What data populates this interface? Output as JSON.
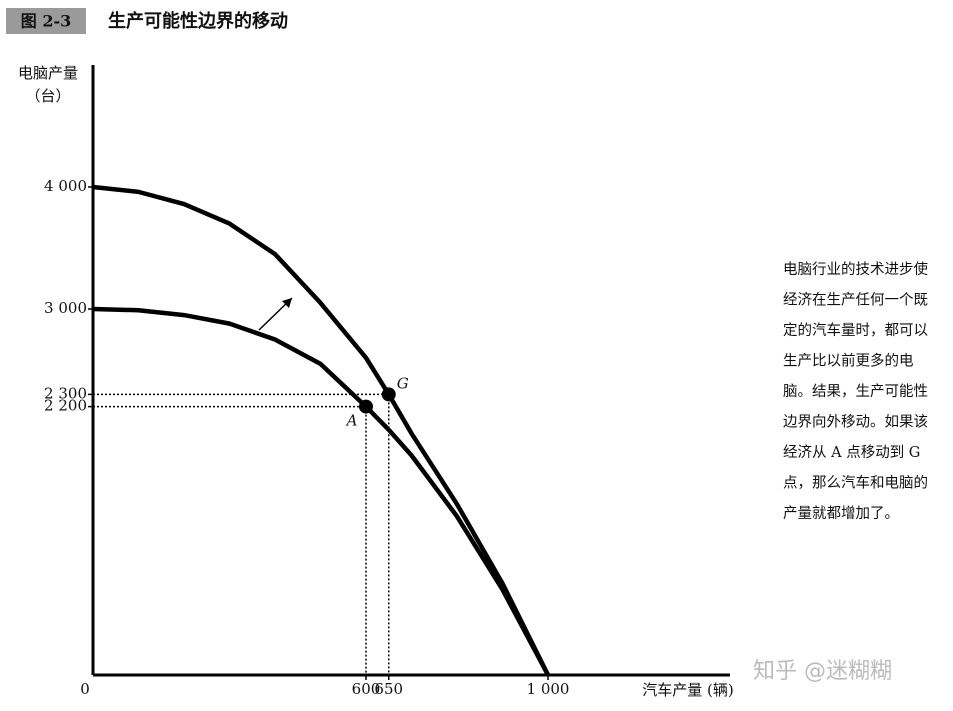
{
  "chart_data": {
    "type": "line",
    "badge": "图 2-3",
    "title": "生产可能性边界的移动",
    "ylabel": [
      "电脑产量",
      "（台）"
    ],
    "xlabel": "汽车产量 (辆)",
    "x": [
      0,
      100,
      200,
      300,
      400,
      500,
      600,
      650,
      700,
      800,
      900,
      1000
    ],
    "series": [
      {
        "color": "#000000",
        "values": [
          3000,
          2990,
          2950,
          2880,
          2750,
          2550,
          2200,
          2010,
          1800,
          1300,
          700,
          0
        ]
      },
      {
        "color": "#000000",
        "values": [
          4000,
          3960,
          3860,
          3700,
          3450,
          3050,
          2600,
          2300,
          1980,
          1400,
          750,
          0
        ]
      }
    ],
    "points": [
      {
        "name": "A",
        "x": 600,
        "y": 2200
      },
      {
        "name": "G",
        "x": 650,
        "y": 2300
      }
    ],
    "xlim": [
      0,
      1400
    ],
    "ylim": [
      0,
      5000
    ],
    "xticks": [
      0,
      600,
      650,
      {
        "value": 1000,
        "label": "1 000"
      }
    ],
    "yticks": [
      {
        "value": 4000,
        "label": "4 000"
      },
      {
        "value": 3000,
        "label": "3 000"
      },
      {
        "value": 2300,
        "label": "2 300"
      },
      {
        "value": 2200,
        "label": "2 200"
      }
    ],
    "annotation": [
      "电脑行业的技术进步使",
      "经济在生产任何一个既",
      "定的汽车量时，都可以",
      "生产比以前更多的电",
      "脑。结果，生产可能性",
      "边界向外移动。如果该",
      "经济从 A 点移动到 G",
      "点，那么汽车和电脑的",
      "产量就都增加了。"
    ],
    "watermark": "知乎 @迷糊糊"
  }
}
